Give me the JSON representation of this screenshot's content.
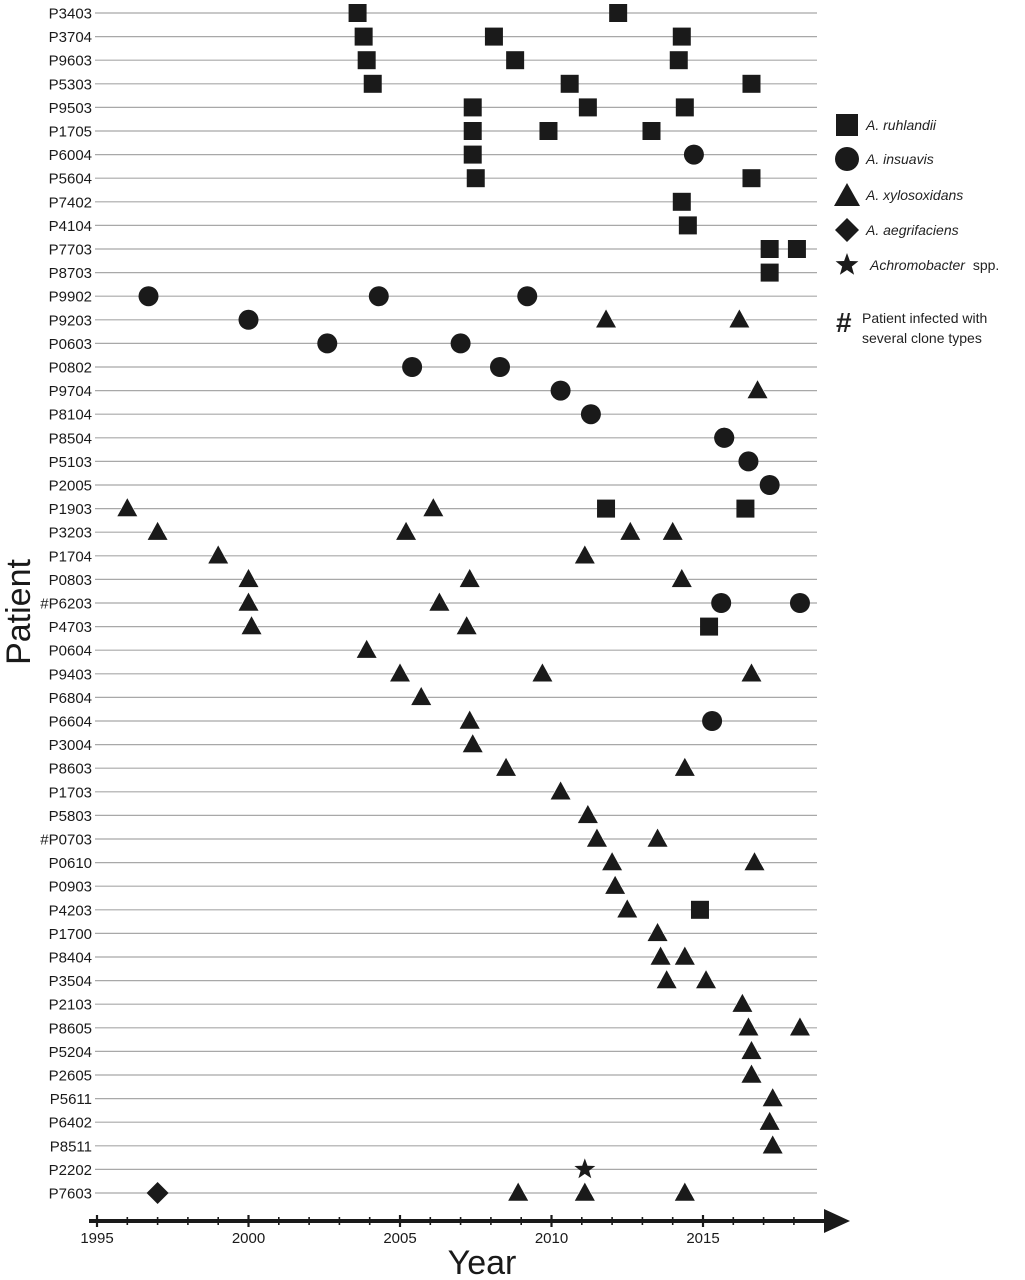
{
  "chart_data": {
    "type": "scatter",
    "xlabel": "Year",
    "ylabel": "Patient",
    "xlim": [
      1995,
      2019
    ],
    "x_ticks": [
      1995,
      2000,
      2005,
      2010,
      2015
    ],
    "patients": [
      "P3403",
      "P3704",
      "P9603",
      "P5303",
      "P9503",
      "P1705",
      "P6004",
      "P5604",
      "P7402",
      "P4104",
      "P7703",
      "P8703",
      "P9902",
      "P9203",
      "P0603",
      "P0802",
      "P9704",
      "P8104",
      "P8504",
      "P5103",
      "P2005",
      "P1903",
      "P3203",
      "P1704",
      "P0803",
      "#P6203",
      "P4703",
      "P0604",
      "P9403",
      "P6804",
      "P6604",
      "P3004",
      "P8603",
      "P1703",
      "P5803",
      "#P0703",
      "P0610",
      "P0903",
      "P4203",
      "P1700",
      "P8404",
      "P3504",
      "P2103",
      "P8605",
      "P5204",
      "P2605",
      "P5611",
      "P6402",
      "P8511",
      "P2202",
      "P7603"
    ],
    "series": [
      {
        "name": "A. ruhlandii",
        "marker": "square",
        "points": [
          [
            "P3403",
            2003.6
          ],
          [
            "P3403",
            2012.2
          ],
          [
            "P3704",
            2003.8
          ],
          [
            "P3704",
            2008.1
          ],
          [
            "P3704",
            2014.3
          ],
          [
            "P9603",
            2003.9
          ],
          [
            "P9603",
            2008.8
          ],
          [
            "P9603",
            2014.2
          ],
          [
            "P5303",
            2004.1
          ],
          [
            "P5303",
            2010.6
          ],
          [
            "P5303",
            2016.6
          ],
          [
            "P9503",
            2007.4
          ],
          [
            "P9503",
            2011.2
          ],
          [
            "P9503",
            2014.4
          ],
          [
            "P1705",
            2007.4
          ],
          [
            "P1705",
            2009.9
          ],
          [
            "P1705",
            2013.3
          ],
          [
            "P6004",
            2007.4
          ],
          [
            "P5604",
            2007.5
          ],
          [
            "P5604",
            2016.6
          ],
          [
            "P7402",
            2014.3
          ],
          [
            "P4104",
            2014.5
          ],
          [
            "P7703",
            2017.2
          ],
          [
            "P7703",
            2018.1
          ],
          [
            "P8703",
            2017.2
          ],
          [
            "P1903",
            2011.8
          ],
          [
            "P1903",
            2016.4
          ],
          [
            "P4703",
            2015.2
          ],
          [
            "P4203",
            2014.9
          ]
        ]
      },
      {
        "name": "A. insuavis",
        "marker": "circle",
        "points": [
          [
            "P6004",
            2014.7
          ],
          [
            "P9902",
            1996.7
          ],
          [
            "P9902",
            2004.3
          ],
          [
            "P9902",
            2009.2
          ],
          [
            "P9203",
            2000.0
          ],
          [
            "P0603",
            2002.6
          ],
          [
            "P0603",
            2007.0
          ],
          [
            "P0802",
            2005.4
          ],
          [
            "P0802",
            2008.3
          ],
          [
            "P9704",
            2010.3
          ],
          [
            "P8104",
            2011.3
          ],
          [
            "P8504",
            2015.7
          ],
          [
            "P8504",
            2015.7
          ],
          [
            "P5103",
            2016.5
          ],
          [
            "P2005",
            2017.2
          ],
          [
            "#P6203",
            2015.6
          ],
          [
            "#P6203",
            2018.2
          ],
          [
            "P6604",
            2015.3
          ]
        ]
      },
      {
        "name": "A. xylosoxidans",
        "marker": "triangle",
        "points": [
          [
            "P9203",
            2011.8
          ],
          [
            "P9203",
            2016.2
          ],
          [
            "P9704",
            2016.8
          ],
          [
            "P1903",
            1996.0
          ],
          [
            "P1903",
            2006.1
          ],
          [
            "P3203",
            1997.0
          ],
          [
            "P3203",
            2005.2
          ],
          [
            "P3203",
            2012.6
          ],
          [
            "P3203",
            2014.0
          ],
          [
            "P1704",
            1999.0
          ],
          [
            "P1704",
            2011.1
          ],
          [
            "P0803",
            2000.0
          ],
          [
            "P0803",
            2007.3
          ],
          [
            "P0803",
            2014.3
          ],
          [
            "#P6203",
            2000.0
          ],
          [
            "#P6203",
            2006.3
          ],
          [
            "P4703",
            2000.1
          ],
          [
            "P4703",
            2007.2
          ],
          [
            "P0604",
            2003.9
          ],
          [
            "P9403",
            2005.0
          ],
          [
            "P9403",
            2009.7
          ],
          [
            "P9403",
            2016.6
          ],
          [
            "P6804",
            2005.7
          ],
          [
            "P6604",
            2007.3
          ],
          [
            "P3004",
            2007.4
          ],
          [
            "P8603",
            2008.5
          ],
          [
            "P8603",
            2014.4
          ],
          [
            "P1703",
            2010.3
          ],
          [
            "P5803",
            2011.2
          ],
          [
            "#P0703",
            2011.5
          ],
          [
            "#P0703",
            2013.5
          ],
          [
            "P0610",
            2012.0
          ],
          [
            "P0610",
            2016.7
          ],
          [
            "P0903",
            2012.1
          ],
          [
            "P4203",
            2012.5
          ],
          [
            "P1700",
            2013.5
          ],
          [
            "P8404",
            2013.6
          ],
          [
            "P8404",
            2013.6
          ],
          [
            "P8404",
            2014.4
          ],
          [
            "P3504",
            2013.8
          ],
          [
            "P3504",
            2015.1
          ],
          [
            "P2103",
            2016.3
          ],
          [
            "P8605",
            2016.5
          ],
          [
            "P8605",
            2018.2
          ],
          [
            "P5204",
            2016.6
          ],
          [
            "P2605",
            2016.6
          ],
          [
            "P5611",
            2017.3
          ],
          [
            "P6402",
            2017.2
          ],
          [
            "P8511",
            2017.3
          ],
          [
            "P7603",
            2008.9
          ],
          [
            "P7603",
            2011.1
          ],
          [
            "P7603",
            2014.4
          ]
        ]
      },
      {
        "name": "A. aegrifaciens",
        "marker": "diamond",
        "points": [
          [
            "P7603",
            1997.0
          ]
        ]
      },
      {
        "name": "Achromobacter spp.",
        "marker": "star",
        "points": [
          [
            "P2202",
            2011.1
          ]
        ]
      }
    ],
    "grid": "horizontal",
    "legend_position": "right"
  },
  "legend": {
    "items": [
      {
        "label": "A. ruhlandii",
        "marker": "square"
      },
      {
        "label": "A. insuavis",
        "marker": "circle"
      },
      {
        "label": "A. xylosoxidans",
        "marker": "triangle"
      },
      {
        "label": "A. aegrifaciens",
        "marker": "diamond"
      },
      {
        "label_italic": "Achromobacter",
        "label_plain": " spp.",
        "marker": "star"
      }
    ],
    "note_symbol": "#",
    "note_text": "Patient infected with several clone types"
  },
  "colors": {
    "marker": "#1a1a1a",
    "grid": "#a8a8a8",
    "axis": "#1a1a1a"
  }
}
